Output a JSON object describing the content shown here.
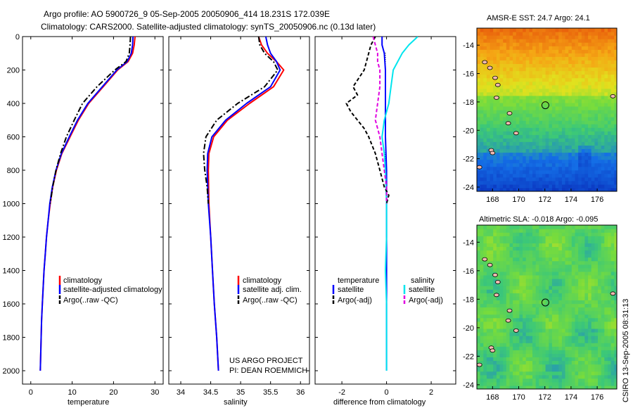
{
  "header": {
    "title_line1": "Argo profile: AO 5900726_9 05-Sep-2005 20050906_414 18.231S 172.039E",
    "title_line2": "Climatology: CARS2000. Satellite-adjusted climatology: synTS_20050906.nc (0.13d later)"
  },
  "footer": {
    "credit_line1": "US ARGO PROJECT",
    "credit_line2": "PI: DEAN ROEMMICH",
    "timestamp": "CSIRO 13-Sep-2005 08:31:13"
  },
  "colors": {
    "climatology": "#ff0000",
    "satellite": "#0000ff",
    "argo": "#000000",
    "sal_satellite": "#00e5ee",
    "sal_argo": "#e000e0",
    "land": "#f0b8b0"
  },
  "chart_data": [
    {
      "id": "temperature",
      "type": "line",
      "xlabel": "temperature",
      "ylabel": "",
      "xlim": [
        -2,
        32
      ],
      "ylim": [
        0,
        2080
      ],
      "y_inverted": true,
      "xticks": [
        0,
        10,
        20,
        30
      ],
      "yticks": [
        0,
        200,
        400,
        600,
        800,
        1000,
        1200,
        1400,
        1600,
        1800,
        2000
      ],
      "legend": {
        "position": "bottom-right",
        "items": [
          "climatology",
          "satellite-adjusted climatology",
          "Argo(..raw -QC)"
        ]
      },
      "series": [
        {
          "name": "climatology",
          "style": "solid",
          "color": "#ff0000",
          "points": [
            [
              25.2,
              0
            ],
            [
              25.0,
              50
            ],
            [
              24.6,
              100
            ],
            [
              23.5,
              150
            ],
            [
              21.0,
              200
            ],
            [
              17.5,
              300
            ],
            [
              14.0,
              400
            ],
            [
              11.5,
              500
            ],
            [
              9.5,
              600
            ],
            [
              7.5,
              700
            ],
            [
              6.2,
              800
            ],
            [
              5.3,
              900
            ],
            [
              4.7,
              1000
            ],
            [
              4.2,
              1100
            ],
            [
              3.8,
              1200
            ],
            [
              3.5,
              1300
            ],
            [
              3.2,
              1400
            ],
            [
              3.0,
              1500
            ],
            [
              2.8,
              1600
            ],
            [
              2.6,
              1700
            ],
            [
              2.5,
              1800
            ],
            [
              2.4,
              1900
            ],
            [
              2.3,
              2000
            ]
          ]
        },
        {
          "name": "satellite-adjusted climatology",
          "style": "solid",
          "color": "#0000ff",
          "points": [
            [
              24.7,
              0
            ],
            [
              24.6,
              50
            ],
            [
              24.3,
              100
            ],
            [
              23.3,
              150
            ],
            [
              20.8,
              200
            ],
            [
              17.3,
              300
            ],
            [
              13.8,
              400
            ],
            [
              11.3,
              500
            ],
            [
              9.3,
              600
            ],
            [
              7.4,
              700
            ],
            [
              6.1,
              800
            ],
            [
              5.2,
              900
            ],
            [
              4.6,
              1000
            ],
            [
              4.2,
              1100
            ],
            [
              3.8,
              1200
            ],
            [
              3.5,
              1300
            ],
            [
              3.2,
              1400
            ],
            [
              3.0,
              1500
            ],
            [
              2.8,
              1600
            ],
            [
              2.6,
              1700
            ],
            [
              2.5,
              1800
            ],
            [
              2.4,
              1900
            ],
            [
              2.3,
              2000
            ]
          ]
        },
        {
          "name": "Argo(..raw -QC)",
          "style": "dashdot",
          "color": "#000000",
          "points": [
            [
              24.1,
              0
            ],
            [
              24.0,
              50
            ],
            [
              23.8,
              100
            ],
            [
              23.0,
              150
            ],
            [
              20.3,
              200
            ],
            [
              16.0,
              300
            ],
            [
              12.5,
              400
            ],
            [
              10.5,
              500
            ],
            [
              8.6,
              600
            ],
            [
              7.2,
              700
            ],
            [
              6.1,
              800
            ],
            [
              5.3,
              900
            ],
            [
              4.7,
              1000
            ]
          ]
        }
      ]
    },
    {
      "id": "salinity",
      "type": "line",
      "xlabel": "salinity",
      "ylabel": "",
      "xlim": [
        33.8,
        36.15
      ],
      "ylim": [
        0,
        2080
      ],
      "y_inverted": true,
      "xticks": [
        34,
        34.5,
        35,
        35.5,
        36
      ],
      "legend": {
        "position": "bottom-right",
        "items": [
          "climatology",
          "satellite adj. clim.",
          "Argo(..raw -QC)"
        ]
      },
      "series": [
        {
          "name": "climatology",
          "style": "solid",
          "color": "#ff0000",
          "points": [
            [
              35.3,
              0
            ],
            [
              35.35,
              50
            ],
            [
              35.45,
              100
            ],
            [
              35.6,
              150
            ],
            [
              35.72,
              200
            ],
            [
              35.55,
              300
            ],
            [
              35.15,
              400
            ],
            [
              34.78,
              500
            ],
            [
              34.55,
              600
            ],
            [
              34.47,
              700
            ],
            [
              34.46,
              800
            ],
            [
              34.47,
              1000
            ],
            [
              34.5,
              1200
            ],
            [
              34.53,
              1400
            ],
            [
              34.56,
              1600
            ],
            [
              34.6,
              1800
            ],
            [
              34.63,
              2000
            ]
          ]
        },
        {
          "name": "satellite adj. clim.",
          "style": "solid",
          "color": "#0000ff",
          "points": [
            [
              35.42,
              0
            ],
            [
              35.45,
              50
            ],
            [
              35.5,
              100
            ],
            [
              35.6,
              150
            ],
            [
              35.66,
              200
            ],
            [
              35.5,
              300
            ],
            [
              35.1,
              400
            ],
            [
              34.75,
              500
            ],
            [
              34.52,
              600
            ],
            [
              34.45,
              700
            ],
            [
              34.44,
              800
            ],
            [
              34.46,
              1000
            ],
            [
              34.5,
              1200
            ],
            [
              34.53,
              1400
            ],
            [
              34.56,
              1600
            ],
            [
              34.6,
              1800
            ],
            [
              34.63,
              2000
            ]
          ]
        },
        {
          "name": "Argo(..raw -QC)",
          "style": "dashdot",
          "color": "#000000",
          "points": [
            [
              35.3,
              0
            ],
            [
              35.32,
              50
            ],
            [
              35.4,
              100
            ],
            [
              35.55,
              150
            ],
            [
              35.62,
              200
            ],
            [
              35.4,
              300
            ],
            [
              34.95,
              400
            ],
            [
              34.6,
              500
            ],
            [
              34.42,
              600
            ],
            [
              34.38,
              700
            ],
            [
              34.4,
              800
            ],
            [
              34.44,
              900
            ],
            [
              34.46,
              1000
            ]
          ]
        }
      ]
    },
    {
      "id": "difference",
      "type": "line",
      "xlabel": "difference from climatology",
      "ylabel": "",
      "xlim": [
        -3.2,
        3.1
      ],
      "ylim": [
        0,
        2080
      ],
      "y_inverted": true,
      "xticks": [
        -2,
        0,
        2
      ],
      "legend": {
        "position": "bottom",
        "col1_title": "temperature",
        "col2_title": "salinity",
        "items": [
          "satellite",
          "Argo(-adj)",
          "satellite",
          "Argo(-adj)"
        ]
      },
      "series": [
        {
          "name": "temperature satellite",
          "style": "solid",
          "color": "#0000ff",
          "points": [
            [
              -0.2,
              0
            ],
            [
              -0.2,
              50
            ],
            [
              -0.1,
              100
            ],
            [
              -0.05,
              200
            ],
            [
              -0.05,
              400
            ],
            [
              -0.05,
              600
            ],
            [
              0,
              800
            ],
            [
              0,
              1000
            ],
            [
              0,
              1200
            ],
            [
              0,
              1600
            ],
            [
              0,
              2000
            ]
          ]
        },
        {
          "name": "salinity satellite",
          "style": "solid",
          "color": "#00e5ee",
          "points": [
            [
              1.4,
              0
            ],
            [
              1.0,
              50
            ],
            [
              0.7,
              100
            ],
            [
              0.3,
              200
            ],
            [
              0.2,
              300
            ],
            [
              0.1,
              400
            ],
            [
              -0.1,
              500
            ],
            [
              -0.2,
              600
            ],
            [
              -0.1,
              700
            ],
            [
              -0.05,
              800
            ],
            [
              0,
              1000
            ],
            [
              0,
              1200
            ],
            [
              -0.05,
              1400
            ],
            [
              0,
              1600
            ],
            [
              0,
              1800
            ],
            [
              0,
              2000
            ]
          ]
        },
        {
          "name": "temperature Argo(-adj)",
          "style": "dashed",
          "color": "#000000",
          "points": [
            [
              -0.5,
              0
            ],
            [
              -0.7,
              50
            ],
            [
              -0.8,
              100
            ],
            [
              -1.0,
              200
            ],
            [
              -1.5,
              300
            ],
            [
              -1.3,
              350
            ],
            [
              -1.8,
              400
            ],
            [
              -1.6,
              450
            ],
            [
              -1.3,
              500
            ],
            [
              -1.0,
              550
            ],
            [
              -0.8,
              600
            ],
            [
              -0.5,
              700
            ],
            [
              -0.3,
              800
            ],
            [
              -0.1,
              900
            ],
            [
              0.1,
              950
            ],
            [
              0,
              1000
            ]
          ]
        },
        {
          "name": "salinity Argo(-adj)",
          "style": "dashed",
          "color": "#e000e0",
          "points": [
            [
              -0.6,
              0
            ],
            [
              -0.5,
              50
            ],
            [
              -0.4,
              100
            ],
            [
              -0.4,
              150
            ],
            [
              -0.3,
              200
            ],
            [
              -0.3,
              300
            ],
            [
              -0.4,
              400
            ],
            [
              -0.5,
              500
            ],
            [
              -0.3,
              600
            ],
            [
              -0.2,
              700
            ],
            [
              -0.1,
              800
            ],
            [
              0,
              900
            ],
            [
              0,
              1000
            ]
          ]
        }
      ]
    },
    {
      "id": "sst_map",
      "type": "heatmap",
      "title": "AMSR-E SST: 24.7 Argo: 24.1",
      "xlim": [
        166.8,
        177.5
      ],
      "ylim": [
        -24.3,
        -12.8
      ],
      "xticks": [
        168,
        170,
        172,
        174,
        176
      ],
      "yticks": [
        -14,
        -16,
        -18,
        -20,
        -22,
        -24
      ],
      "marker": [
        172.039,
        -18.231
      ]
    },
    {
      "id": "sla_map",
      "type": "heatmap",
      "title": "Altimetric SLA: -0.018 Argo: -0.095",
      "xlim": [
        166.8,
        177.5
      ],
      "ylim": [
        -24.3,
        -12.8
      ],
      "xticks": [
        168,
        170,
        172,
        174,
        176
      ],
      "yticks": [
        -14,
        -16,
        -18,
        -20,
        -22,
        -24
      ],
      "marker": [
        172.039,
        -18.231
      ]
    }
  ]
}
